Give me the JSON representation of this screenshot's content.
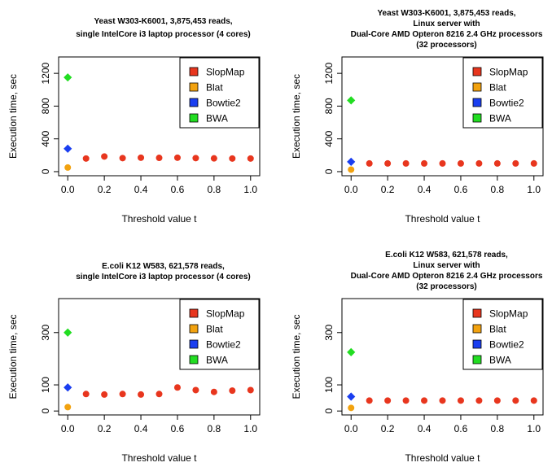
{
  "colors": {
    "SlopMap": "#e8361e",
    "Blat": "#f2a20f",
    "Bowtie2": "#1a3ef0",
    "BWA": "#22dd22"
  },
  "chart_data": [
    {
      "type": "scatter",
      "title_lines": [
        "Yeast W303-K6001, 3,875,453 reads,",
        "single IntelCore i3 laptop processor (4 cores)"
      ],
      "xlabel": "Threshold value t",
      "ylabel": "Execution time, sec",
      "xlim": [
        0,
        1.0
      ],
      "ylim": [
        0,
        1300
      ],
      "xticks": [
        "0.0",
        "0.2",
        "0.4",
        "0.6",
        "0.8",
        "1.0"
      ],
      "yticks": [
        "0",
        "400",
        "800",
        "1200"
      ],
      "legend": [
        "SlopMap",
        "Blat",
        "Bowtie2",
        "BWA"
      ],
      "legend_position": "top-right",
      "series": [
        {
          "name": "SlopMap",
          "x": [
            0.1,
            0.2,
            0.3,
            0.4,
            0.5,
            0.6,
            0.7,
            0.8,
            0.9,
            1.0
          ],
          "y": [
            160,
            185,
            165,
            170,
            168,
            170,
            165,
            162,
            160,
            160
          ]
        },
        {
          "name": "Blat",
          "x": [
            0.0
          ],
          "y": [
            50
          ]
        },
        {
          "name": "Bowtie2",
          "x": [
            0.0
          ],
          "y": [
            280
          ]
        },
        {
          "name": "BWA",
          "x": [
            0.0
          ],
          "y": [
            1150
          ]
        }
      ]
    },
    {
      "type": "scatter",
      "title_lines": [
        "Yeast W303-K6001, 3,875,453 reads,",
        "Linux server with",
        "Dual-Core AMD Opteron 8216 2.4 GHz processors",
        "(32 processors)"
      ],
      "xlabel": "Threshold value t",
      "ylabel": "Execution time, sec",
      "xlim": [
        0,
        1.0
      ],
      "ylim": [
        0,
        1300
      ],
      "xticks": [
        "0.0",
        "0.2",
        "0.4",
        "0.6",
        "0.8",
        "1.0"
      ],
      "yticks": [
        "0",
        "400",
        "800",
        "1200"
      ],
      "legend": [
        "SlopMap",
        "Blat",
        "Bowtie2",
        "BWA"
      ],
      "legend_position": "top-right",
      "series": [
        {
          "name": "SlopMap",
          "x": [
            0.1,
            0.2,
            0.3,
            0.4,
            0.5,
            0.6,
            0.7,
            0.8,
            0.9,
            1.0
          ],
          "y": [
            100,
            100,
            100,
            100,
            100,
            100,
            100,
            100,
            100,
            100
          ]
        },
        {
          "name": "Blat",
          "x": [
            0.0
          ],
          "y": [
            25
          ]
        },
        {
          "name": "Bowtie2",
          "x": [
            0.0
          ],
          "y": [
            120
          ]
        },
        {
          "name": "BWA",
          "x": [
            0.0
          ],
          "y": [
            870
          ]
        }
      ]
    },
    {
      "type": "scatter",
      "title_lines": [
        "E.coli K12 W583, 621,578 reads,",
        "single IntelCore i3 laptop processor (4 cores)"
      ],
      "xlabel": "Threshold value t",
      "ylabel": "Execution time, sec",
      "xlim": [
        0,
        1.0
      ],
      "ylim": [
        0,
        400
      ],
      "xticks": [
        "0.0",
        "0.2",
        "0.4",
        "0.6",
        "0.8",
        "1.0"
      ],
      "yticks": [
        "0",
        "100",
        "300"
      ],
      "legend": [
        "SlopMap",
        "Blat",
        "Bowtie2",
        "BWA"
      ],
      "legend_position": "top-right",
      "series": [
        {
          "name": "SlopMap",
          "x": [
            0.1,
            0.2,
            0.3,
            0.4,
            0.5,
            0.6,
            0.7,
            0.8,
            0.9,
            1.0
          ],
          "y": [
            65,
            63,
            65,
            63,
            65,
            90,
            80,
            73,
            78,
            80
          ]
        },
        {
          "name": "Blat",
          "x": [
            0.0
          ],
          "y": [
            15
          ]
        },
        {
          "name": "Bowtie2",
          "x": [
            0.0
          ],
          "y": [
            90
          ]
        },
        {
          "name": "BWA",
          "x": [
            0.0
          ],
          "y": [
            300
          ]
        }
      ]
    },
    {
      "type": "scatter",
      "title_lines": [
        "E.coli K12 W583, 621,578 reads,",
        "Linux server with",
        "Dual-Core AMD Opteron 8216 2.4 GHz processors",
        "(32 processors)"
      ],
      "xlabel": "Threshold value t",
      "ylabel": "Execution time, sec",
      "xlim": [
        0,
        1.0
      ],
      "ylim": [
        0,
        400
      ],
      "xticks": [
        "0.0",
        "0.2",
        "0.4",
        "0.6",
        "0.8",
        "1.0"
      ],
      "yticks": [
        "0",
        "100",
        "300"
      ],
      "legend": [
        "SlopMap",
        "Blat",
        "Bowtie2",
        "BWA"
      ],
      "legend_position": "top-right",
      "series": [
        {
          "name": "SlopMap",
          "x": [
            0.1,
            0.2,
            0.3,
            0.4,
            0.5,
            0.6,
            0.7,
            0.8,
            0.9,
            1.0
          ],
          "y": [
            40,
            40,
            40,
            40,
            40,
            40,
            40,
            40,
            40,
            40
          ]
        },
        {
          "name": "Blat",
          "x": [
            0.0
          ],
          "y": [
            12
          ]
        },
        {
          "name": "Bowtie2",
          "x": [
            0.0
          ],
          "y": [
            55
          ]
        },
        {
          "name": "BWA",
          "x": [
            0.0
          ],
          "y": [
            225
          ]
        }
      ]
    }
  ]
}
